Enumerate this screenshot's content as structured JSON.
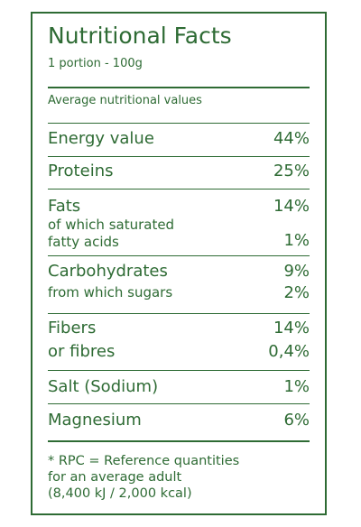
{
  "title": "Nutritional Facts",
  "portion": "1 portion - 100g",
  "caption": "Average nutritional values",
  "rows": [
    {
      "label": "Energy value",
      "value": "44%"
    },
    {
      "label": "Proteins",
      "value": "25%"
    },
    {
      "label": "Fats",
      "value": "14%"
    },
    {
      "label_line1": "of which saturated",
      "label_line2": "fatty acids",
      "value": "1%"
    },
    {
      "label": "Carbohydrates",
      "value": "9%"
    },
    {
      "label": "from which sugars",
      "value": "2%"
    },
    {
      "label": "Fibers",
      "value": "14%"
    },
    {
      "label": "or fibres",
      "value": "0,4%"
    },
    {
      "label": "Salt (Sodium)",
      "value": "1%"
    },
    {
      "label": "Magnesium",
      "value": "6%"
    }
  ],
  "footnote": [
    "* RPC = Reference quantities",
    "for an average adult",
    "(8,400 kJ / 2,000 kcal)"
  ]
}
